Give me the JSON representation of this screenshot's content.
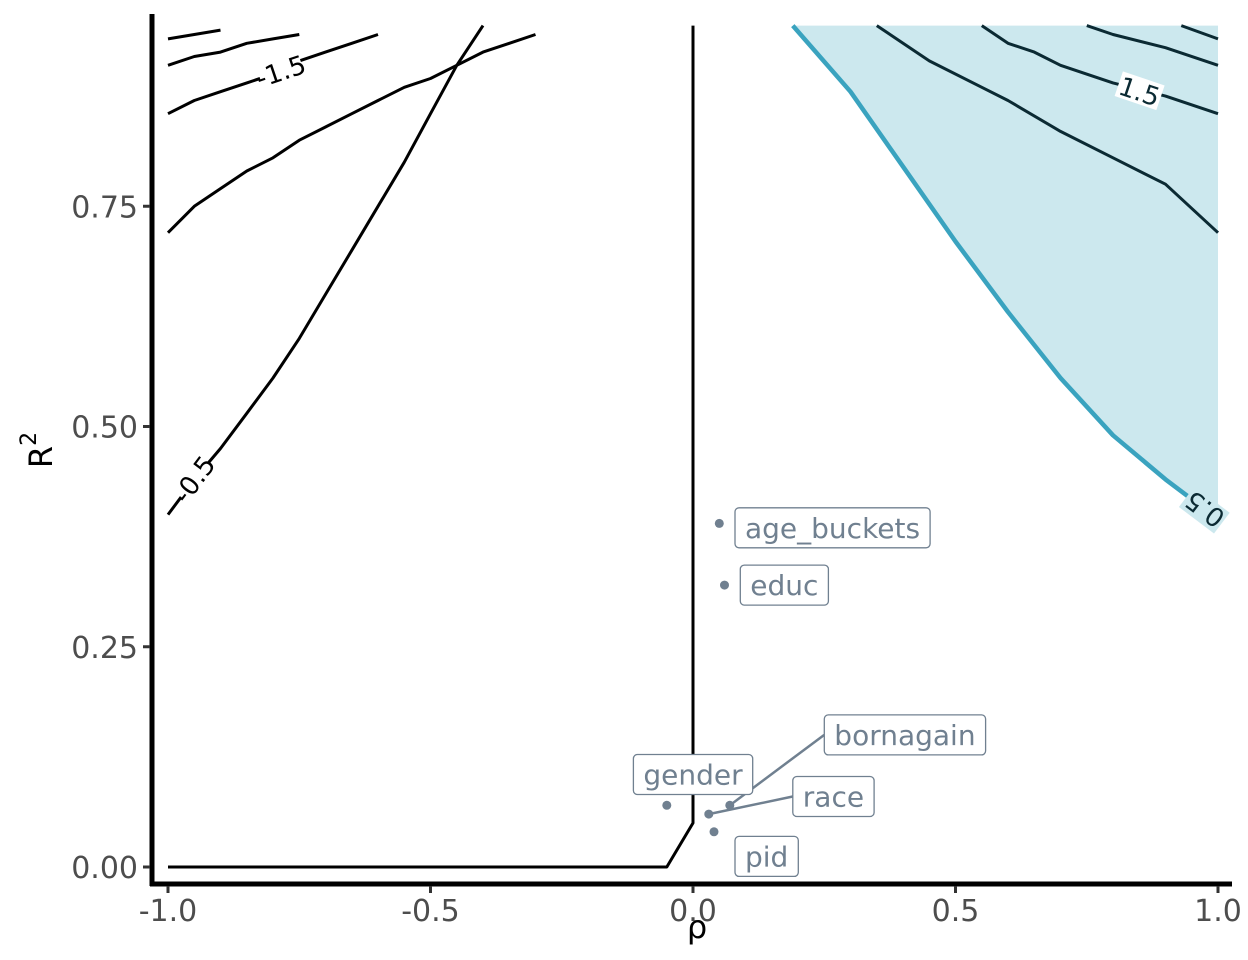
{
  "chart_data": {
    "type": "contour",
    "title": "",
    "xlabel": "ρ",
    "ylabel": "R",
    "ylabel_superscript": "2",
    "xlim": [
      -1.0,
      1.0
    ],
    "ylim": [
      0.0,
      0.95
    ],
    "x_ticks": [
      -1.0,
      -0.5,
      0.0,
      0.5,
      1.0
    ],
    "x_tick_labels": [
      "-1.0",
      "-0.5",
      "0.0",
      "0.5",
      "1.0"
    ],
    "y_ticks": [
      0.0,
      0.25,
      0.5,
      0.75
    ],
    "y_tick_labels": [
      "0.00",
      "0.25",
      "0.50",
      "0.75"
    ],
    "grid": false,
    "colors": {
      "contour": "#000000",
      "contour_shaded": "#0b2a33",
      "threshold_line": "#3aa3bf",
      "shaded_fill": "#cce8ee",
      "point": "#708090",
      "label_text": "#708090"
    },
    "contours": [
      {
        "level": -0.5,
        "label": "-0.5",
        "points": [
          [
            -1.0,
            0.4
          ],
          [
            -0.95,
            0.44
          ],
          [
            -0.9,
            0.475
          ],
          [
            -0.85,
            0.515
          ],
          [
            -0.8,
            0.555
          ],
          [
            -0.75,
            0.6
          ],
          [
            -0.7,
            0.65
          ],
          [
            -0.65,
            0.7
          ],
          [
            -0.6,
            0.75
          ],
          [
            -0.55,
            0.8
          ],
          [
            -0.5,
            0.855
          ],
          [
            -0.45,
            0.91
          ],
          [
            -0.4,
            0.955
          ]
        ]
      },
      {
        "level": -1.0,
        "label": "",
        "points": [
          [
            -1.0,
            0.72
          ],
          [
            -0.95,
            0.75
          ],
          [
            -0.9,
            0.77
          ],
          [
            -0.85,
            0.79
          ],
          [
            -0.8,
            0.805
          ],
          [
            -0.75,
            0.825
          ],
          [
            -0.7,
            0.84
          ],
          [
            -0.65,
            0.855
          ],
          [
            -0.6,
            0.87
          ],
          [
            -0.55,
            0.885
          ],
          [
            -0.5,
            0.895
          ],
          [
            -0.45,
            0.91
          ],
          [
            -0.4,
            0.925
          ],
          [
            -0.35,
            0.935
          ],
          [
            -0.3,
            0.945
          ]
        ]
      },
      {
        "level": -1.5,
        "label": "-1.5",
        "points": [
          [
            -1.0,
            0.855
          ],
          [
            -0.95,
            0.87
          ],
          [
            -0.9,
            0.88
          ],
          [
            -0.85,
            0.89
          ],
          [
            -0.8,
            0.9
          ],
          [
            -0.75,
            0.915
          ],
          [
            -0.7,
            0.925
          ],
          [
            -0.65,
            0.935
          ],
          [
            -0.6,
            0.945
          ]
        ]
      },
      {
        "level": -2.0,
        "label": "",
        "points": [
          [
            -1.0,
            0.91
          ],
          [
            -0.95,
            0.92
          ],
          [
            -0.9,
            0.925
          ],
          [
            -0.85,
            0.935
          ],
          [
            -0.8,
            0.94
          ],
          [
            -0.75,
            0.945
          ]
        ]
      },
      {
        "level": -2.5,
        "label": "",
        "points": [
          [
            -1.0,
            0.94
          ],
          [
            -0.95,
            0.945
          ],
          [
            -0.9,
            0.95
          ]
        ]
      },
      {
        "level": 0.0,
        "label": "",
        "points": [
          [
            -1.0,
            0.0
          ],
          [
            -0.05,
            0.0
          ],
          [
            0.0,
            0.05
          ],
          [
            0.0,
            0.955
          ]
        ]
      },
      {
        "level": 0.5,
        "label": "0.5",
        "shaded": true,
        "points": [
          [
            0.19,
            0.955
          ],
          [
            0.3,
            0.88
          ],
          [
            0.4,
            0.795
          ],
          [
            0.5,
            0.71
          ],
          [
            0.6,
            0.63
          ],
          [
            0.7,
            0.555
          ],
          [
            0.8,
            0.49
          ],
          [
            0.9,
            0.44
          ],
          [
            1.0,
            0.395
          ]
        ]
      },
      {
        "level": 1.0,
        "label": "",
        "points": [
          [
            0.35,
            0.955
          ],
          [
            0.45,
            0.915
          ],
          [
            0.55,
            0.885
          ],
          [
            0.6,
            0.87
          ],
          [
            0.7,
            0.835
          ],
          [
            0.8,
            0.805
          ],
          [
            0.9,
            0.775
          ],
          [
            1.0,
            0.72
          ]
        ]
      },
      {
        "level": 1.5,
        "label": "1.5",
        "points": [
          [
            0.55,
            0.955
          ],
          [
            0.6,
            0.935
          ],
          [
            0.65,
            0.925
          ],
          [
            0.7,
            0.91
          ],
          [
            0.8,
            0.89
          ],
          [
            0.9,
            0.875
          ],
          [
            1.0,
            0.855
          ]
        ]
      },
      {
        "level": 2.0,
        "label": "",
        "points": [
          [
            0.75,
            0.955
          ],
          [
            0.8,
            0.945
          ],
          [
            0.9,
            0.93
          ],
          [
            1.0,
            0.91
          ]
        ]
      },
      {
        "level": 2.5,
        "label": "",
        "points": [
          [
            0.93,
            0.955
          ],
          [
            1.0,
            0.94
          ]
        ]
      }
    ],
    "shaded_region": {
      "level_above": 0.5,
      "points": [
        [
          0.19,
          0.955
        ],
        [
          0.3,
          0.88
        ],
        [
          0.4,
          0.795
        ],
        [
          0.5,
          0.71
        ],
        [
          0.6,
          0.63
        ],
        [
          0.7,
          0.555
        ],
        [
          0.8,
          0.49
        ],
        [
          0.9,
          0.44
        ],
        [
          1.0,
          0.395
        ],
        [
          1.0,
          0.955
        ]
      ]
    },
    "points": [
      {
        "name": "age_buckets",
        "x": 0.05,
        "y": 0.39
      },
      {
        "name": "educ",
        "x": 0.06,
        "y": 0.32
      },
      {
        "name": "bornagain",
        "x": 0.07,
        "y": 0.07
      },
      {
        "name": "gender",
        "x": -0.05,
        "y": 0.07
      },
      {
        "name": "race",
        "x": 0.03,
        "y": 0.06
      },
      {
        "name": "pid",
        "x": 0.04,
        "y": 0.04
      }
    ]
  }
}
